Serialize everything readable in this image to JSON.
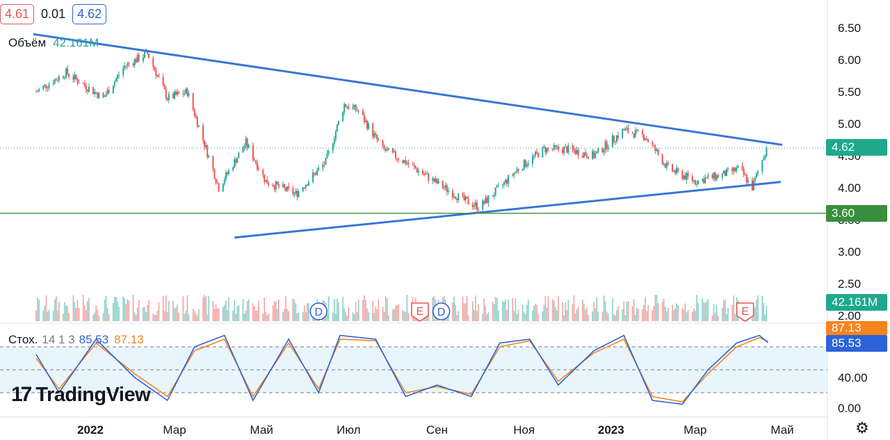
{
  "legend": {
    "low": "4.61",
    "change": "0.01",
    "high": "4.62"
  },
  "volume_legend": {
    "label": "Объём",
    "value": "42.161M"
  },
  "stoch_legend": {
    "label": "Стох.",
    "params": "14 1 3",
    "k_value": "85.53",
    "d_value": "87.13"
  },
  "price_tags": {
    "last": "4.62",
    "support": "3.60",
    "volume": "42.161M",
    "stoch_d": "87.13",
    "stoch_k": "85.53"
  },
  "brand": {
    "name": "TradingView"
  },
  "icons": {
    "settings": "gear-icon",
    "logo": "tradingview-logo-icon"
  },
  "colors": {
    "up": "#26a69a",
    "down": "#ef5350",
    "trendline": "#3a75d6",
    "support": "#388e3c",
    "stoch_k": "#2d62d9",
    "stoch_d": "#f7841d",
    "band": "#e3f2fd"
  },
  "chart_data": {
    "type": "candlestick",
    "title": "",
    "price_axis": {
      "ticks": [
        6.5,
        6.0,
        5.5,
        5.0,
        4.5,
        4.0,
        3.5,
        3.0,
        2.5,
        2.0
      ],
      "labels": [
        "6.50",
        "6.00",
        "5.50",
        "5.00",
        "4.50",
        "4.00",
        "3.50",
        "3.00",
        "2.50",
        "2.00"
      ]
    },
    "stoch_axis": {
      "ticks": [
        40,
        0
      ],
      "labels": [
        "40.00",
        "0.00"
      ],
      "band": [
        20,
        80
      ]
    },
    "time_axis": {
      "labels": [
        "2022",
        "Мар",
        "Май",
        "Июл",
        "Сен",
        "Ноя",
        "2023",
        "Мар",
        "Май"
      ],
      "dates": [
        "2022-01-01",
        "2022-03-01",
        "2022-05-01",
        "2022-07-01",
        "2022-09-01",
        "2022-11-01",
        "2023-01-01",
        "2023-03-01",
        "2023-05-01"
      ]
    },
    "series": [
      {
        "name": "close",
        "dates": [
          "2021-11-24",
          "2021-12-15",
          "2022-01-10",
          "2022-01-25",
          "2022-02-10",
          "2022-02-24",
          "2022-03-10",
          "2022-04-01",
          "2022-04-20",
          "2022-05-04",
          "2022-05-25",
          "2022-06-15",
          "2022-06-28",
          "2022-07-08",
          "2022-07-25",
          "2022-08-10",
          "2022-08-30",
          "2022-09-20",
          "2022-10-01",
          "2022-10-15",
          "2022-10-28",
          "2022-11-15",
          "2022-12-01",
          "2022-12-20",
          "2023-01-10",
          "2023-01-25",
          "2023-02-10",
          "2023-03-01",
          "2023-03-20",
          "2023-04-01",
          "2023-04-10",
          "2023-04-20"
        ],
        "values": [
          5.5,
          5.8,
          5.4,
          5.9,
          6.1,
          5.4,
          5.5,
          4.0,
          4.7,
          4.1,
          3.9,
          4.4,
          5.3,
          5.2,
          4.6,
          4.4,
          4.1,
          3.8,
          3.7,
          4.0,
          4.3,
          4.6,
          4.6,
          4.5,
          4.9,
          4.8,
          4.3,
          4.1,
          4.2,
          4.3,
          4.0,
          4.62
        ]
      }
    ],
    "trendlines": [
      {
        "name": "resistance",
        "start": [
          "2021-11-22",
          6.4
        ],
        "end": [
          "2023-05-01",
          4.67
        ]
      },
      {
        "name": "support-trend",
        "start": [
          "2022-04-12",
          3.22
        ],
        "end": [
          "2023-04-30",
          4.09
        ]
      },
      {
        "name": "horizontal-support",
        "start": [
          "2021-11-22",
          3.6
        ],
        "end": [
          "2023-06-05",
          3.6
        ]
      }
    ],
    "events": [
      {
        "type": "D",
        "date": "2022-06-10"
      },
      {
        "type": "E",
        "date": "2022-08-20"
      },
      {
        "type": "D",
        "date": "2022-09-04"
      },
      {
        "type": "E",
        "date": "2023-04-05"
      }
    ],
    "stochastic": {
      "dates": [
        "2021-11-24",
        "2021-12-10",
        "2022-01-05",
        "2022-02-01",
        "2022-02-24",
        "2022-03-15",
        "2022-04-05",
        "2022-04-25",
        "2022-05-20",
        "2022-06-10",
        "2022-06-25",
        "2022-07-20",
        "2022-08-10",
        "2022-09-01",
        "2022-09-25",
        "2022-10-15",
        "2022-11-05",
        "2022-11-25",
        "2022-12-20",
        "2023-01-10",
        "2023-01-30",
        "2023-02-20",
        "2023-03-10",
        "2023-03-30",
        "2023-04-15",
        "2023-04-21"
      ],
      "k": [
        70,
        20,
        90,
        40,
        10,
        80,
        95,
        10,
        90,
        20,
        95,
        90,
        15,
        30,
        15,
        85,
        90,
        30,
        75,
        95,
        10,
        5,
        50,
        85,
        95,
        85.53
      ],
      "d": [
        65,
        25,
        85,
        45,
        15,
        75,
        90,
        15,
        85,
        25,
        90,
        88,
        20,
        28,
        18,
        80,
        88,
        35,
        72,
        90,
        15,
        8,
        45,
        80,
        92,
        87.13
      ]
    }
  }
}
